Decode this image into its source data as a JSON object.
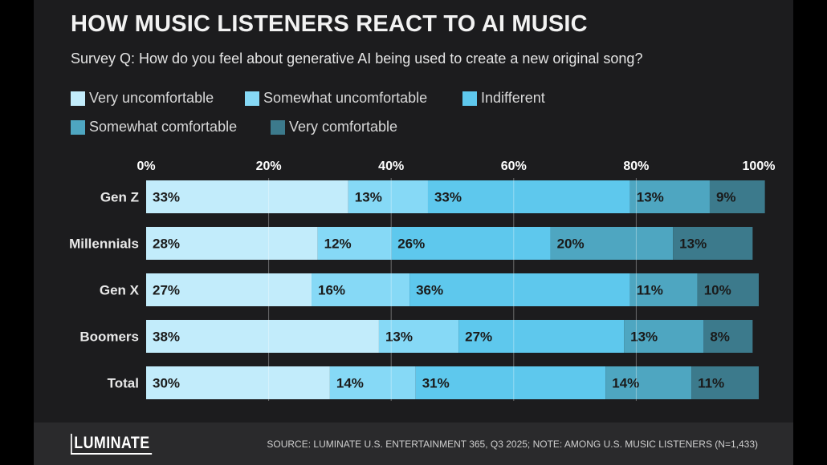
{
  "title": "HOW MUSIC LISTENERS REACT TO AI MUSIC",
  "subtitle": "Survey Q: How do you feel about generative AI being used to create a new original song?",
  "footer": {
    "logo": "LUMINATE",
    "source": "SOURCE: LUMINATE U.S. ENTERTAINMENT 365, Q3 2025; NOTE: AMONG U.S. MUSIC LISTENERS (N=1,433)"
  },
  "chart_data": {
    "type": "bar",
    "orientation": "horizontal",
    "stacked": true,
    "categories": [
      "Gen Z",
      "Millennials",
      "Gen X",
      "Boomers",
      "Total"
    ],
    "series": [
      {
        "name": "Very uncomfortable",
        "values": [
          33,
          28,
          27,
          38,
          30
        ],
        "color": "#c2ecfb"
      },
      {
        "name": "Somewhat uncomfortable",
        "values": [
          13,
          12,
          16,
          13,
          14
        ],
        "color": "#86d9f6"
      },
      {
        "name": "Indifferent",
        "values": [
          33,
          26,
          36,
          27,
          31
        ],
        "color": "#5ec8ed"
      },
      {
        "name": "Somewhat comfortable",
        "values": [
          13,
          20,
          11,
          13,
          14
        ],
        "color": "#4ea6c1"
      },
      {
        "name": "Very comfortable",
        "values": [
          9,
          13,
          10,
          8,
          11
        ],
        "color": "#3c7a8c"
      }
    ],
    "xticks": [
      "0%",
      "20%",
      "40%",
      "60%",
      "80%",
      "100%"
    ],
    "xlim": [
      0,
      100
    ],
    "grid": true,
    "legend_position": "top-left"
  }
}
